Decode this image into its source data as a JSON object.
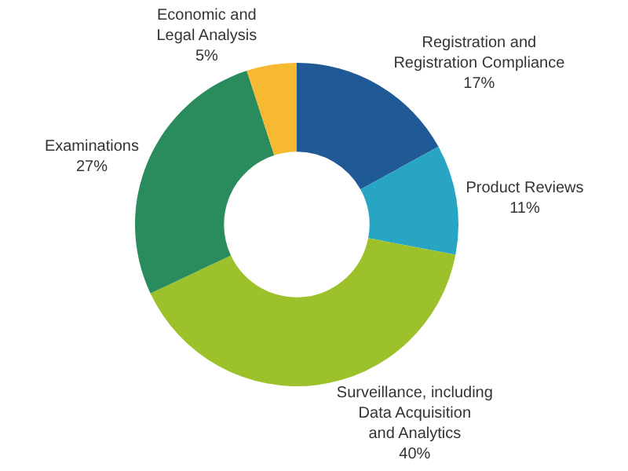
{
  "chart_data": {
    "type": "donut",
    "categories": [
      "Registration and\nRegistration Compliance",
      "Product Reviews",
      "Surveillance, including\nData Acquisition\nand Analytics",
      "Examinations",
      "Economic and\nLegal Analysis"
    ],
    "values": [
      17,
      11,
      40,
      27,
      5
    ],
    "value_labels": [
      "17%",
      "11%",
      "40%",
      "27%",
      "5%"
    ],
    "colors": [
      "#1f5a96",
      "#27a5c2",
      "#9cc12a",
      "#2a8c5c",
      "#f7b932"
    ],
    "legend": false
  }
}
